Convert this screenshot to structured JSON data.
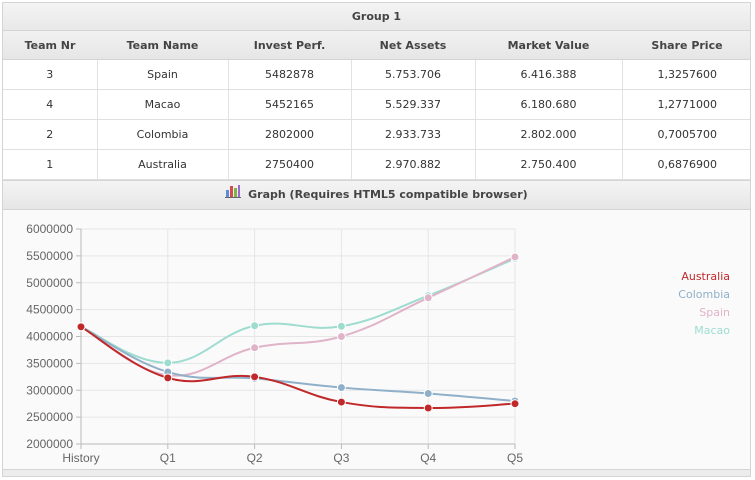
{
  "group": {
    "title": "Group 1"
  },
  "table": {
    "headers": [
      "Team Nr",
      "Team Name",
      "Invest Perf.",
      "Net Assets",
      "Market Value",
      "Share Price"
    ],
    "rows": [
      [
        "3",
        "Spain",
        "5482878",
        "5.753.706",
        "6.416.388",
        "1,3257600"
      ],
      [
        "4",
        "Macao",
        "5452165",
        "5.529.337",
        "6.180.680",
        "1,2771000"
      ],
      [
        "2",
        "Colombia",
        "2802000",
        "2.933.733",
        "2.802.000",
        "0,7005700"
      ],
      [
        "1",
        "Australia",
        "2750400",
        "2.970.882",
        "2.750.400",
        "0,6876900"
      ]
    ]
  },
  "graph": {
    "title": "Graph (Requires HTML5 compatible browser)",
    "icon": "bar-chart-icon"
  },
  "chart_data": {
    "type": "line",
    "categories": [
      "History",
      "Q1",
      "Q2",
      "Q3",
      "Q4",
      "Q5"
    ],
    "ylim": [
      2000000,
      6000000
    ],
    "yticks": [
      "6000000",
      "5500000",
      "5000000",
      "4500000",
      "4000000",
      "3500000",
      "3000000",
      "2500000",
      "2000000"
    ],
    "grid": true,
    "legend_position": "right",
    "series": [
      {
        "name": "Australia",
        "color": "#c0282a",
        "values": [
          4180000,
          3230000,
          3250000,
          2780000,
          2670000,
          2750000
        ]
      },
      {
        "name": "Colombia",
        "color": "#8fb0c8",
        "values": [
          4180000,
          3340000,
          3220000,
          3050000,
          2940000,
          2800000
        ]
      },
      {
        "name": "Spain",
        "color": "#e0b4c8",
        "values": [
          4180000,
          3280000,
          3790000,
          4000000,
          4720000,
          5480000
        ]
      },
      {
        "name": "Macao",
        "color": "#9edcd0",
        "values": [
          4180000,
          3510000,
          4200000,
          4190000,
          4760000,
          5450000
        ]
      }
    ]
  }
}
